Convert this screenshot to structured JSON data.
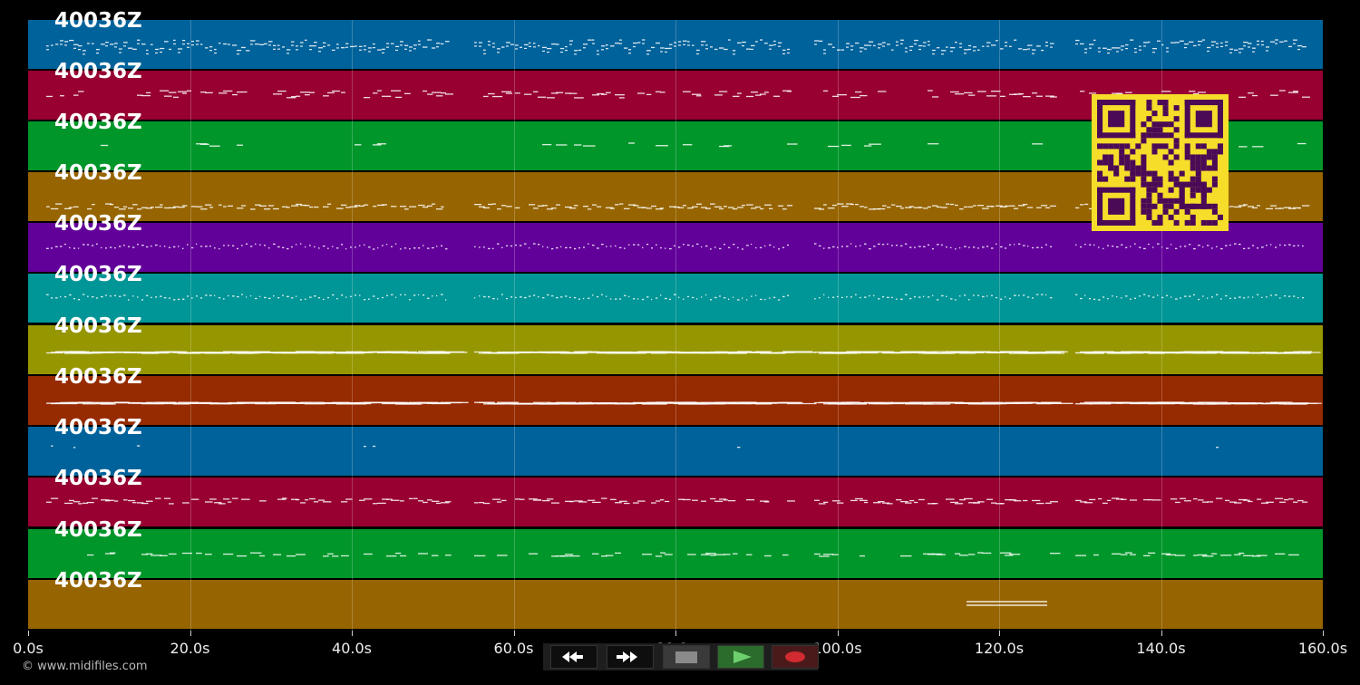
{
  "app": {
    "copyright": "© www.midifiles.com"
  },
  "tracks": [
    {
      "label": "40036Z",
      "color": "#00629a"
    },
    {
      "label": "40036Z",
      "color": "#970031"
    },
    {
      "label": "40036Z",
      "color": "#00962a"
    },
    {
      "label": "40036Z",
      "color": "#966400"
    },
    {
      "label": "40036Z",
      "color": "#62009a"
    },
    {
      "label": "40036Z",
      "color": "#009596"
    },
    {
      "label": "40036Z",
      "color": "#969600"
    },
    {
      "label": "40036Z",
      "color": "#962a00"
    },
    {
      "label": "40036Z",
      "color": "#00629a"
    },
    {
      "label": "40036Z",
      "color": "#970031"
    },
    {
      "label": "40036Z",
      "color": "#00962a"
    },
    {
      "label": "40036Z",
      "color": "#966400"
    }
  ],
  "timeline": {
    "ticks": [
      "0.0s",
      "20.0s",
      "40.0s",
      "60.0s",
      "80.0s",
      "100.0s",
      "120.0s",
      "140.0s",
      "160.0s"
    ]
  },
  "controls": {
    "rewind_icon": "rewind-icon",
    "forward_icon": "fast-forward-icon",
    "stop_icon": "stop-icon",
    "play_icon": "play-icon",
    "record_icon": "record-icon",
    "colors": {
      "play": "#2b6b2b",
      "record": "#c0272d",
      "stop": "#888888"
    }
  },
  "qr": {
    "fg": "#4a0a56",
    "bg": "#f6dd2a"
  },
  "grid_color": "rgba(255,255,255,0.22)"
}
